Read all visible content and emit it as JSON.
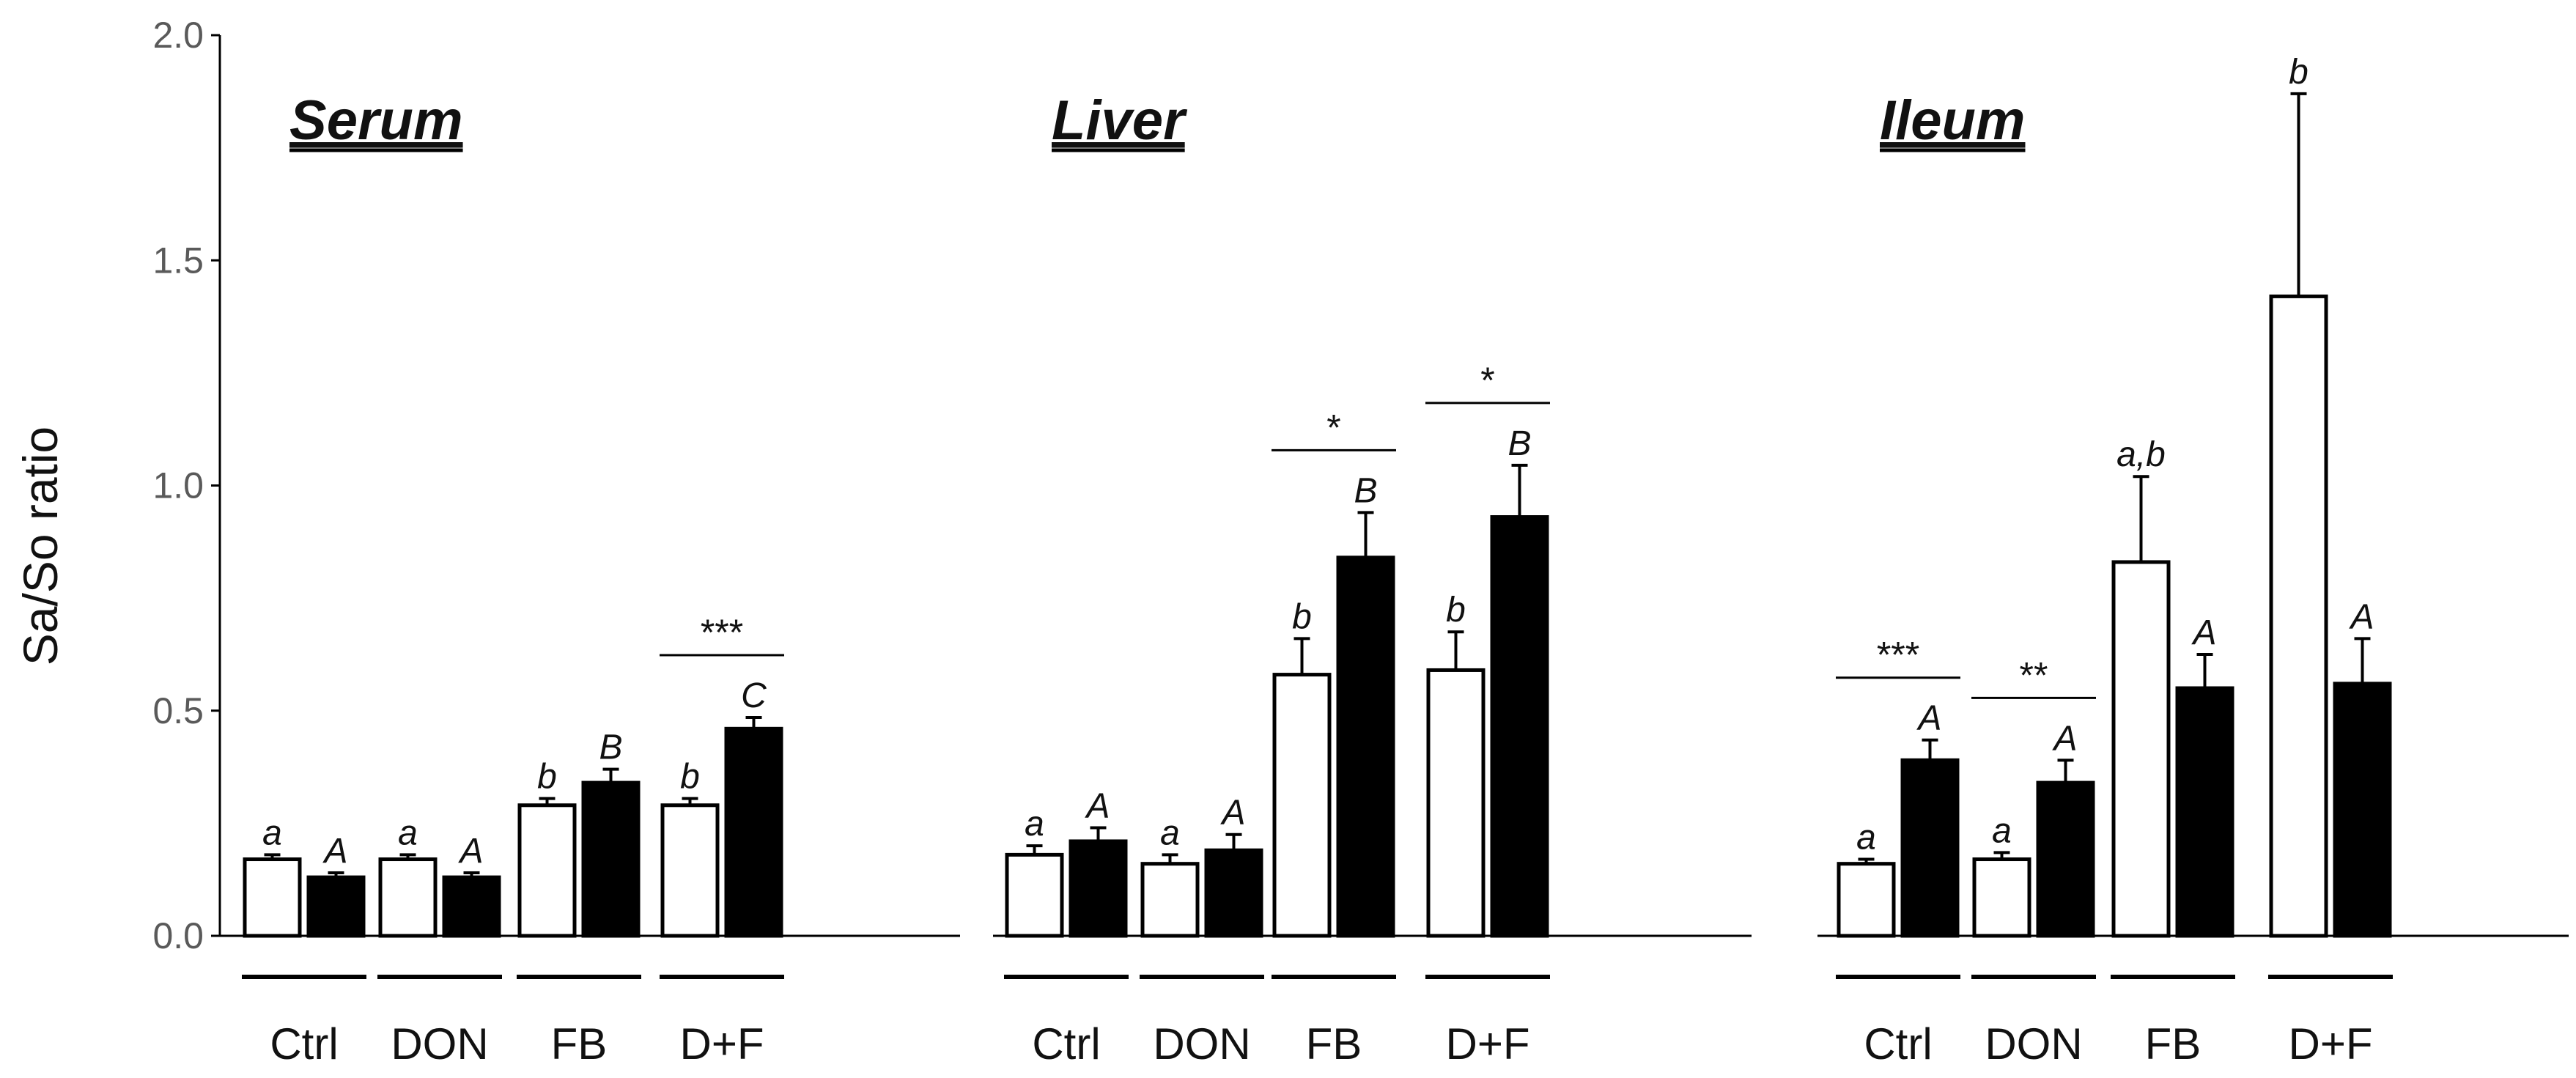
{
  "chart_data": {
    "type": "bar",
    "ylabel": "Sa/So ratio",
    "ylim": [
      0,
      2.0
    ],
    "yticks": [
      "0.0",
      "0.5",
      "1.0",
      "1.5",
      "2.0"
    ],
    "ytick_values": [
      0,
      0.5,
      1.0,
      1.5,
      2.0
    ],
    "categories": [
      "Ctrl",
      "DON",
      "FB",
      "D+F"
    ],
    "series_styles": [
      {
        "fill": "#ffffff",
        "stroke": "#000000"
      },
      {
        "fill": "#000000",
        "stroke": "#000000"
      }
    ],
    "panels": [
      {
        "title": "Serum",
        "groups": [
          {
            "label": "Ctrl",
            "values": [
              0.17,
              0.13
            ],
            "errors": [
              0.01,
              0.01
            ],
            "letters": [
              "a",
              "A"
            ],
            "sig": ""
          },
          {
            "label": "DON",
            "values": [
              0.17,
              0.13
            ],
            "errors": [
              0.01,
              0.01
            ],
            "letters": [
              "a",
              "A"
            ],
            "sig": ""
          },
          {
            "label": "FB",
            "values": [
              0.29,
              0.34
            ],
            "errors": [
              0.015,
              0.03
            ],
            "letters": [
              "b",
              "B"
            ],
            "sig": ""
          },
          {
            "label": "D+F",
            "values": [
              0.29,
              0.46
            ],
            "errors": [
              0.015,
              0.025
            ],
            "letters": [
              "b",
              "C"
            ],
            "sig": "***"
          }
        ]
      },
      {
        "title": "Liver",
        "groups": [
          {
            "label": "Ctrl",
            "values": [
              0.18,
              0.21
            ],
            "errors": [
              0.02,
              0.03
            ],
            "letters": [
              "a",
              "A"
            ],
            "sig": ""
          },
          {
            "label": "DON",
            "values": [
              0.16,
              0.19
            ],
            "errors": [
              0.02,
              0.035
            ],
            "letters": [
              "a",
              "A"
            ],
            "sig": ""
          },
          {
            "label": "FB",
            "values": [
              0.58,
              0.84
            ],
            "errors": [
              0.08,
              0.1
            ],
            "letters": [
              "b",
              "B"
            ],
            "sig": "*"
          },
          {
            "label": "D+F",
            "values": [
              0.59,
              0.93
            ],
            "errors": [
              0.085,
              0.115
            ],
            "letters": [
              "b",
              "B"
            ],
            "sig": "*"
          }
        ]
      },
      {
        "title": "Ileum",
        "groups": [
          {
            "label": "Ctrl",
            "values": [
              0.16,
              0.39
            ],
            "errors": [
              0.01,
              0.045
            ],
            "letters": [
              "a",
              "A"
            ],
            "sig": "***"
          },
          {
            "label": "DON",
            "values": [
              0.17,
              0.34
            ],
            "errors": [
              0.015,
              0.05
            ],
            "letters": [
              "a",
              "A"
            ],
            "sig": "**"
          },
          {
            "label": "FB",
            "values": [
              0.83,
              0.55
            ],
            "errors": [
              0.19,
              0.075
            ],
            "letters": [
              "a,b",
              "A"
            ],
            "sig": ""
          },
          {
            "label": "D+F",
            "values": [
              1.42,
              0.56
            ],
            "errors": [
              0.45,
              0.1
            ],
            "letters": [
              "b",
              "A"
            ],
            "sig": ""
          }
        ]
      }
    ]
  }
}
